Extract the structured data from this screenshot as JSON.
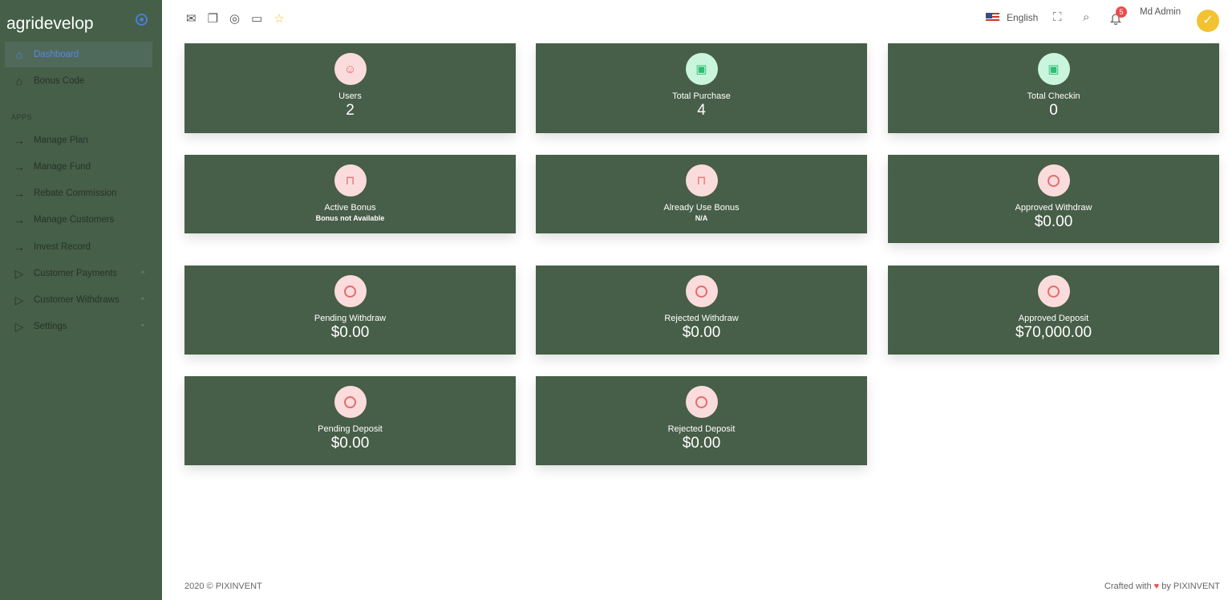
{
  "brand": "agridevelop",
  "sidebar": {
    "items": [
      {
        "label": "Dashboard",
        "icon": "home-icon"
      },
      {
        "label": "Bonus Code",
        "icon": "home-icon"
      }
    ],
    "section": "APPS",
    "apps": [
      {
        "label": "Manage Plan"
      },
      {
        "label": "Manage Fund"
      },
      {
        "label": "Rebate Commission"
      },
      {
        "label": "Manage Customers"
      },
      {
        "label": "Invest Record"
      },
      {
        "label": "Customer Payments"
      },
      {
        "label": "Customer Withdraws"
      },
      {
        "label": "Settings"
      }
    ]
  },
  "header": {
    "language": "English",
    "user": "Md Admin",
    "notifications": "5"
  },
  "cards": [
    {
      "label": "Users",
      "value": "2"
    },
    {
      "label": "Total Purchase",
      "value": "4"
    },
    {
      "label": "Total Checkin",
      "value": "0"
    },
    {
      "label": "Active Bonus",
      "sub": "Bonus not Available"
    },
    {
      "label": "Already Use Bonus",
      "sub": "N/A"
    },
    {
      "label": "Approved Withdraw",
      "value": "$0.00"
    },
    {
      "label": "Pending Withdraw",
      "value": "$0.00"
    },
    {
      "label": "Rejected Withdraw",
      "value": "$0.00"
    },
    {
      "label": "Approved Deposit",
      "value": "$70,000.00"
    },
    {
      "label": "Pending Deposit",
      "value": "$0.00"
    },
    {
      "label": "Rejected Deposit",
      "value": "$0.00"
    }
  ],
  "footer": {
    "left": "2020 © PIXINVENT",
    "right_prefix": "Crafted with",
    "right_suffix": "by PIXINVENT"
  },
  "colors": {
    "sidebar": "#455f48",
    "card": "#475e48",
    "active": "#5b86e0"
  }
}
